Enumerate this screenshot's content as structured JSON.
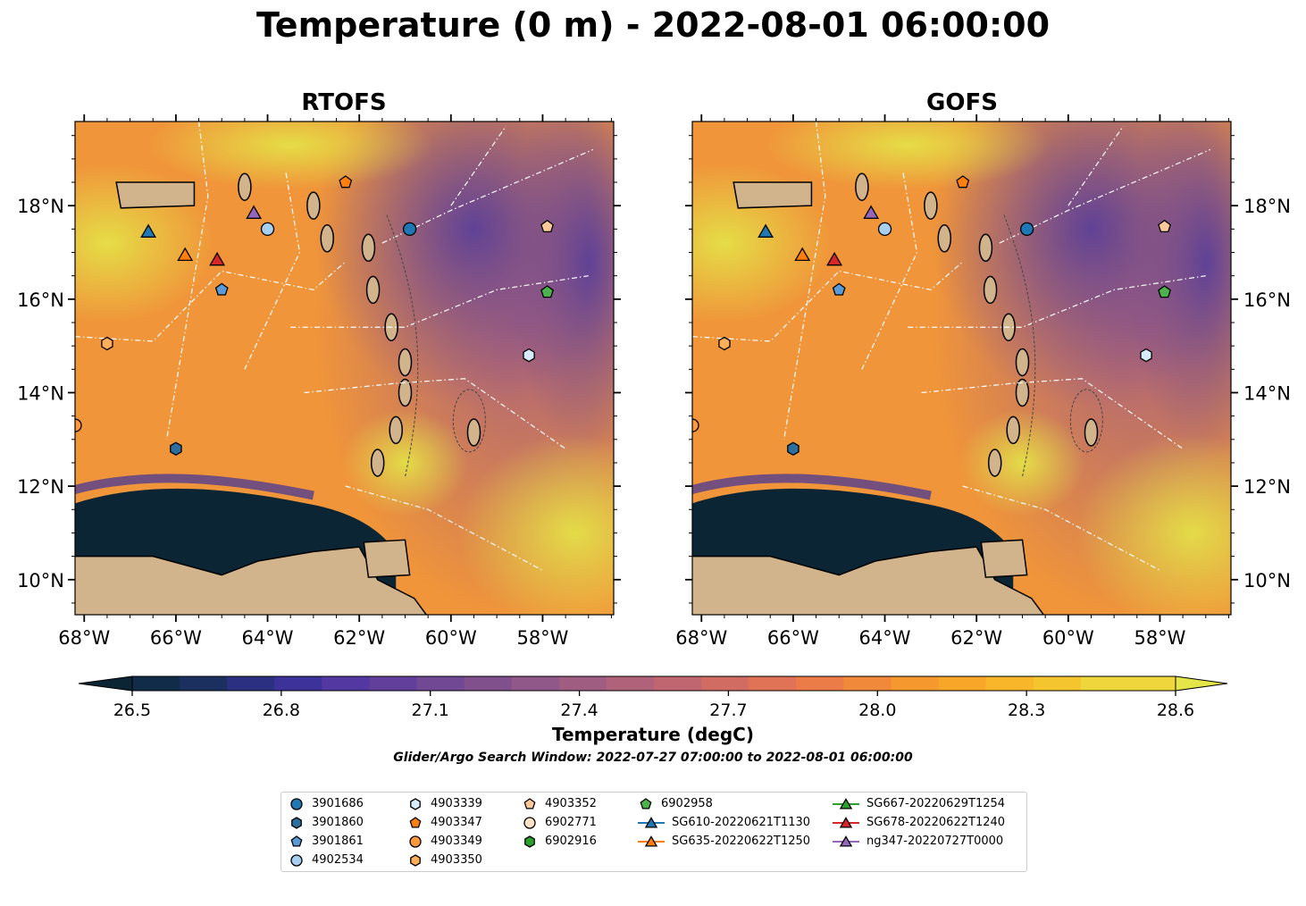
{
  "title": "Temperature (0 m) - 2022-08-01 06:00:00",
  "panels": [
    {
      "title": "RTOFS"
    },
    {
      "title": "GOFS"
    }
  ],
  "axes": {
    "x_ticks": [
      "68°W",
      "66°W",
      "64°W",
      "62°W",
      "60°W",
      "58°W"
    ],
    "y_ticks": [
      "18°N",
      "16°N",
      "14°N",
      "12°N",
      "10°N"
    ]
  },
  "colorbar": {
    "label": "Temperature (degC)",
    "ticks": [
      "26.5",
      "26.8",
      "27.1",
      "27.4",
      "27.7",
      "28.0",
      "28.3",
      "28.6"
    ],
    "colors": [
      "#0b2534",
      "#102c48",
      "#1c3060",
      "#2b3080",
      "#3d329a",
      "#5238a0",
      "#613f9a",
      "#704893",
      "#80508d",
      "#905888",
      "#a05d82",
      "#b0627a",
      "#c06670",
      "#d06c62",
      "#e07356",
      "#eb7c47",
      "#f08a3a",
      "#f5982e",
      "#f7a628",
      "#f8b62a",
      "#f5c530",
      "#eed63c",
      "#e4e548"
    ]
  },
  "search_window": "Glider/Argo Search Window: 2022-07-27 07:00:00 to 2022-08-01 06:00:00",
  "legend": [
    {
      "label": "3901686",
      "marker": "circle",
      "color": "#1f77b4"
    },
    {
      "label": "3901860",
      "marker": "hexagon",
      "color": "#2c6f9e"
    },
    {
      "label": "3901861",
      "marker": "pentagon",
      "color": "#5b9bd5"
    },
    {
      "label": "4902534",
      "marker": "circle",
      "color": "#a8cef0"
    },
    {
      "label": "4903339",
      "marker": "hexagon",
      "color": "#d7ecfa"
    },
    {
      "label": "4903347",
      "marker": "pentagon",
      "color": "#ff7f0e"
    },
    {
      "label": "4903349",
      "marker": "circle",
      "color": "#ff9a3c"
    },
    {
      "label": "4903350",
      "marker": "hexagon",
      "color": "#ffae5a"
    },
    {
      "label": "4903352",
      "marker": "pentagon",
      "color": "#ffc99a"
    },
    {
      "label": "6902771",
      "marker": "circle",
      "color": "#ffe2c8"
    },
    {
      "label": "6902916",
      "marker": "hexagon",
      "color": "#2ca02c"
    },
    {
      "label": "6902958",
      "marker": "pentagon",
      "color": "#4cb24c"
    },
    {
      "label": "SG610-20220621T1130",
      "marker": "triangle-line",
      "color": "#1f77b4"
    },
    {
      "label": "SG635-20220622T1250",
      "marker": "triangle-line",
      "color": "#ff7f0e"
    },
    {
      "label": "SG667-20220629T1254",
      "marker": "triangle-line",
      "color": "#2ca02c"
    },
    {
      "label": "SG678-20220622T1240",
      "marker": "triangle-line",
      "color": "#d62728"
    },
    {
      "label": "ng347-20220727T0000",
      "marker": "triangle-line",
      "color": "#9467bd"
    }
  ],
  "markers": [
    {
      "id": "3901686",
      "lon": -60.9,
      "lat": 17.5
    },
    {
      "id": "3901860",
      "lon": -66.0,
      "lat": 12.8
    },
    {
      "id": "3901861",
      "lon": -65.0,
      "lat": 16.2
    },
    {
      "id": "4902534",
      "lon": -64.0,
      "lat": 17.5
    },
    {
      "id": "4903339",
      "lon": -58.3,
      "lat": 14.8
    },
    {
      "id": "4903347",
      "lon": -62.3,
      "lat": 18.5
    },
    {
      "id": "4903349",
      "lon": -68.2,
      "lat": 13.3
    },
    {
      "id": "4903350",
      "lon": -67.5,
      "lat": 15.05
    },
    {
      "id": "4903352",
      "lon": -57.9,
      "lat": 17.55
    },
    {
      "id": "6902958",
      "lon": -57.9,
      "lat": 16.15
    },
    {
      "id": "SG610-20220621T1130",
      "lon": -66.6,
      "lat": 17.45
    },
    {
      "id": "SG635-20220622T1250",
      "lon": -65.8,
      "lat": 16.95
    },
    {
      "id": "SG678-20220622T1240",
      "lon": -65.1,
      "lat": 16.85
    },
    {
      "id": "ng347-20220727T0000",
      "lon": -64.3,
      "lat": 17.85
    }
  ]
}
